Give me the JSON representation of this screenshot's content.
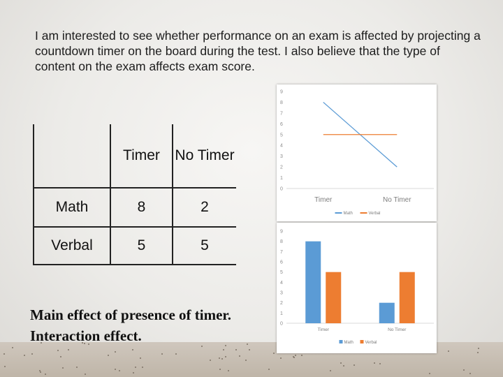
{
  "intro_text": "I am interested to see whether performance on an exam is affected by projecting a countdown timer on the board during the test.  I also believe that the type of content on the exam affects exam score.",
  "table": {
    "headers": [
      "",
      "Timer",
      "No Timer"
    ],
    "rows": [
      {
        "label": "Math",
        "values": [
          "8",
          "2"
        ]
      },
      {
        "label": "Verbal",
        "values": [
          "5",
          "5"
        ]
      }
    ]
  },
  "effects": [
    "Main effect of presence of timer.",
    "Interaction effect."
  ],
  "colors": {
    "math": "#5b9bd5",
    "verbal": "#ed7d31"
  },
  "chart_data": [
    {
      "type": "line",
      "categories": [
        "Timer",
        "No Timer"
      ],
      "series": [
        {
          "name": "Math",
          "values": [
            8,
            2
          ]
        },
        {
          "name": "Verbal",
          "values": [
            5,
            5
          ]
        }
      ],
      "yticks": [
        "0",
        "1",
        "2",
        "3",
        "4",
        "5",
        "6",
        "7",
        "8",
        "9"
      ],
      "ylim": [
        0,
        9
      ],
      "grid": false,
      "legend": "bottom"
    },
    {
      "type": "bar",
      "categories": [
        "Timer",
        "No Timer"
      ],
      "series": [
        {
          "name": "Math",
          "values": [
            8,
            2
          ]
        },
        {
          "name": "Verbal",
          "values": [
            5,
            5
          ]
        }
      ],
      "yticks": [
        "0",
        "1",
        "2",
        "3",
        "4",
        "5",
        "6",
        "7",
        "8",
        "9"
      ],
      "ylim": [
        0,
        9
      ],
      "grid": false,
      "legend": "bottom"
    }
  ]
}
